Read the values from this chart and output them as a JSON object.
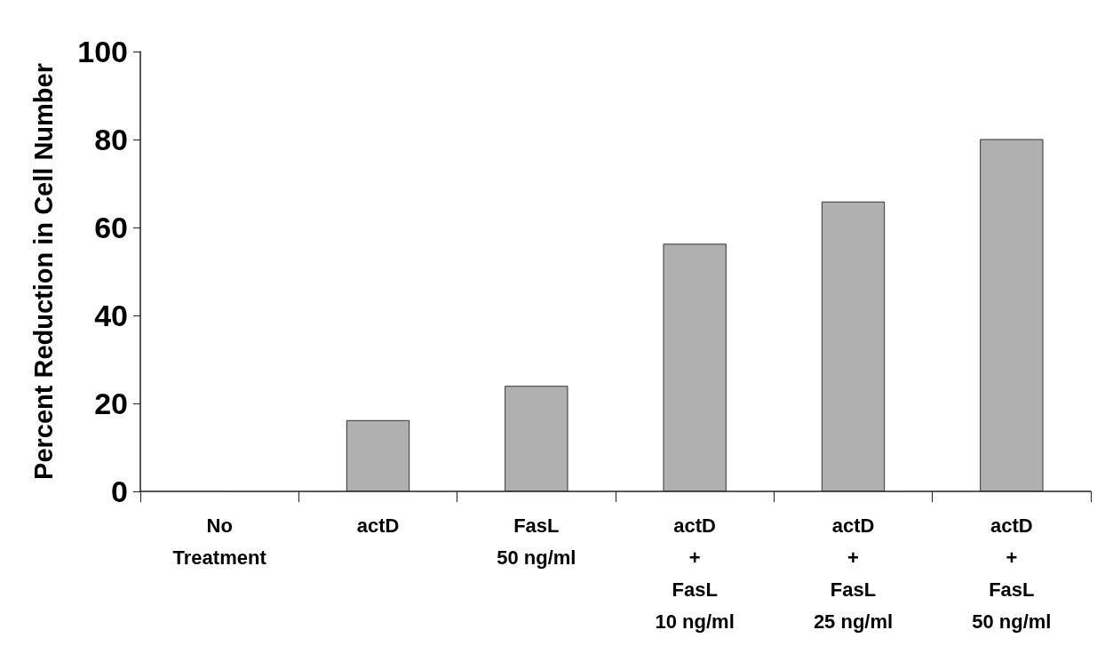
{
  "chart_data": {
    "type": "bar",
    "ylabel": "Percent Reduction in Cell Number",
    "categories": [
      "No\nTreatment",
      "actD",
      "FasL\n50 ng/ml",
      "actD\n+\nFasL\n10 ng/ml",
      "actD\n+\nFasL\n25 ng/ml",
      "actD\n+\nFasL\n50 ng/ml"
    ],
    "values": [
      0,
      16.2,
      24,
      56.3,
      65.9,
      80.1
    ],
    "color": "#b0b0b0",
    "ylim": [
      0,
      100
    ],
    "yticks": [
      0,
      20,
      40,
      60,
      80,
      100
    ],
    "grid": false
  }
}
